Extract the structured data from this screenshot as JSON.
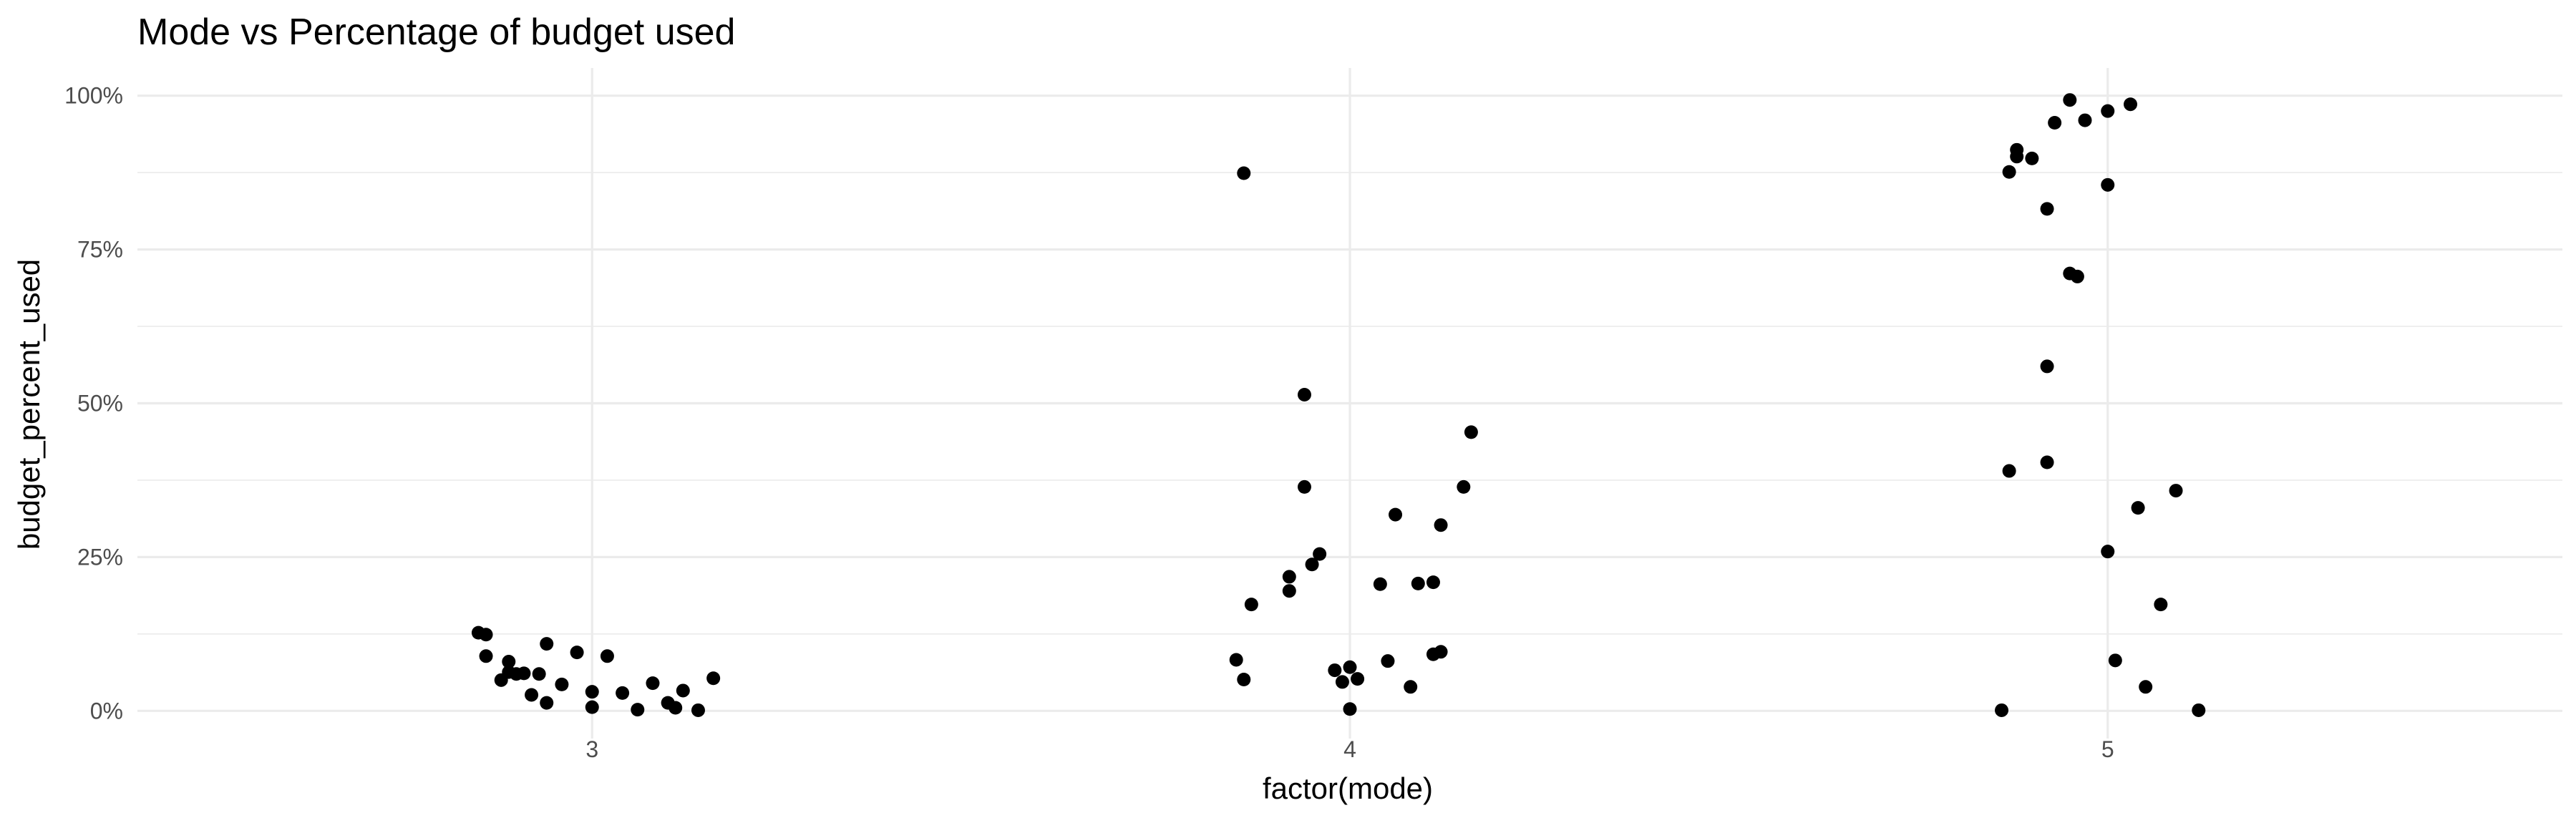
{
  "chart_data": {
    "type": "scatter",
    "title": "Mode vs Percentage of budget used",
    "xlabel": "factor(mode)",
    "ylabel": "budget_percent_used",
    "categories": [
      "3",
      "4",
      "5"
    ],
    "ylim": [
      -0.045,
      1.045
    ],
    "y_ticks": [
      0,
      0.25,
      0.5,
      0.75,
      1.0
    ],
    "y_tick_labels": [
      "0%",
      "25%",
      "50%",
      "75%",
      "100%"
    ],
    "grid": true,
    "legend": "none",
    "points": [
      {
        "x": 2.85,
        "y": 0.127
      },
      {
        "x": 2.86,
        "y": 0.124
      },
      {
        "x": 2.86,
        "y": 0.089
      },
      {
        "x": 2.89,
        "y": 0.08
      },
      {
        "x": 2.89,
        "y": 0.063
      },
      {
        "x": 2.88,
        "y": 0.05
      },
      {
        "x": 2.9,
        "y": 0.06
      },
      {
        "x": 2.91,
        "y": 0.061
      },
      {
        "x": 2.92,
        "y": 0.026
      },
      {
        "x": 2.93,
        "y": 0.06
      },
      {
        "x": 2.94,
        "y": 0.109
      },
      {
        "x": 2.94,
        "y": 0.013
      },
      {
        "x": 2.96,
        "y": 0.043
      },
      {
        "x": 2.98,
        "y": 0.095
      },
      {
        "x": 3.0,
        "y": 0.031
      },
      {
        "x": 3.0,
        "y": 0.006
      },
      {
        "x": 3.02,
        "y": 0.089
      },
      {
        "x": 3.04,
        "y": 0.029
      },
      {
        "x": 3.06,
        "y": 0.002
      },
      {
        "x": 3.08,
        "y": 0.045
      },
      {
        "x": 3.1,
        "y": 0.013
      },
      {
        "x": 3.11,
        "y": 0.005
      },
      {
        "x": 3.12,
        "y": 0.033
      },
      {
        "x": 3.14,
        "y": 0.001
      },
      {
        "x": 3.16,
        "y": 0.053
      },
      {
        "x": 3.86,
        "y": 0.874
      },
      {
        "x": 3.85,
        "y": 0.083
      },
      {
        "x": 3.86,
        "y": 0.051
      },
      {
        "x": 3.87,
        "y": 0.173
      },
      {
        "x": 3.92,
        "y": 0.218
      },
      {
        "x": 3.92,
        "y": 0.195
      },
      {
        "x": 3.94,
        "y": 0.514
      },
      {
        "x": 3.94,
        "y": 0.364
      },
      {
        "x": 3.95,
        "y": 0.238
      },
      {
        "x": 3.96,
        "y": 0.255
      },
      {
        "x": 3.98,
        "y": 0.066
      },
      {
        "x": 3.99,
        "y": 0.047
      },
      {
        "x": 4.0,
        "y": 0.071
      },
      {
        "x": 4.0,
        "y": 0.003
      },
      {
        "x": 4.01,
        "y": 0.052
      },
      {
        "x": 4.04,
        "y": 0.206
      },
      {
        "x": 4.05,
        "y": 0.081
      },
      {
        "x": 4.06,
        "y": 0.319
      },
      {
        "x": 4.08,
        "y": 0.039
      },
      {
        "x": 4.09,
        "y": 0.207
      },
      {
        "x": 4.11,
        "y": 0.209
      },
      {
        "x": 4.11,
        "y": 0.092
      },
      {
        "x": 4.12,
        "y": 0.096
      },
      {
        "x": 4.12,
        "y": 0.302
      },
      {
        "x": 4.15,
        "y": 0.364
      },
      {
        "x": 4.16,
        "y": 0.453
      },
      {
        "x": 4.86,
        "y": 0.001
      },
      {
        "x": 4.87,
        "y": 0.876
      },
      {
        "x": 4.87,
        "y": 0.39
      },
      {
        "x": 4.88,
        "y": 0.901
      },
      {
        "x": 4.88,
        "y": 0.912
      },
      {
        "x": 4.9,
        "y": 0.898
      },
      {
        "x": 4.92,
        "y": 0.816
      },
      {
        "x": 4.92,
        "y": 0.56
      },
      {
        "x": 4.92,
        "y": 0.404
      },
      {
        "x": 4.93,
        "y": 0.956
      },
      {
        "x": 4.95,
        "y": 0.993
      },
      {
        "x": 4.95,
        "y": 0.711
      },
      {
        "x": 4.96,
        "y": 0.706
      },
      {
        "x": 4.97,
        "y": 0.96
      },
      {
        "x": 5.0,
        "y": 0.855
      },
      {
        "x": 5.0,
        "y": 0.975
      },
      {
        "x": 5.0,
        "y": 0.259
      },
      {
        "x": 5.01,
        "y": 0.082
      },
      {
        "x": 5.03,
        "y": 0.986
      },
      {
        "x": 5.04,
        "y": 0.33
      },
      {
        "x": 5.05,
        "y": 0.039
      },
      {
        "x": 5.07,
        "y": 0.173
      },
      {
        "x": 5.09,
        "y": 0.358
      },
      {
        "x": 5.12,
        "y": 0.001
      }
    ]
  }
}
